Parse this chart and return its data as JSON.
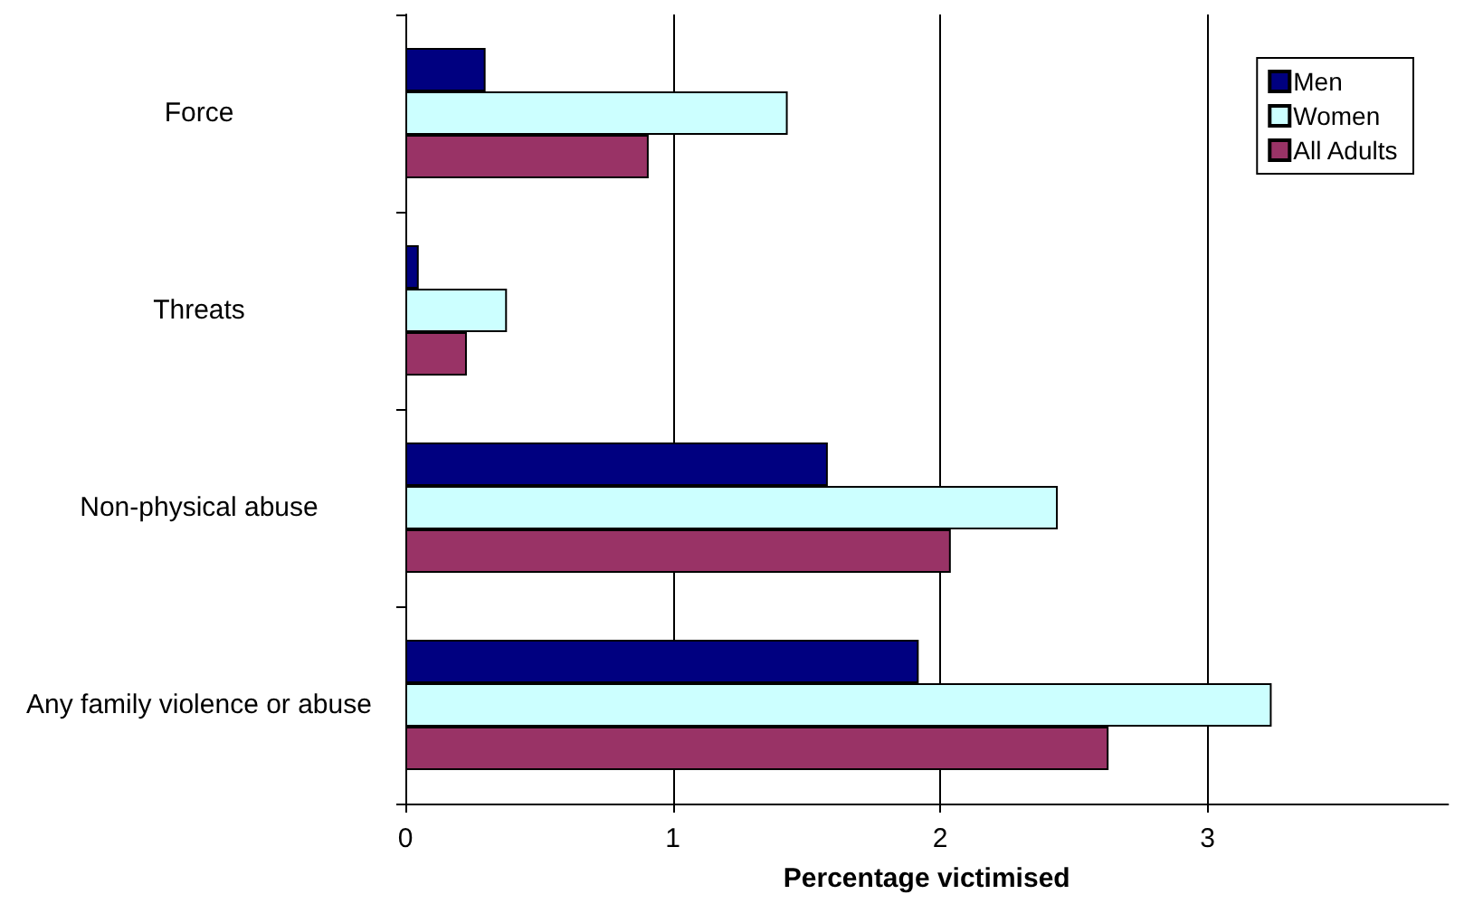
{
  "chart_data": {
    "type": "bar",
    "orientation": "horizontal",
    "xlabel": "Percentage victimised",
    "categories": [
      "Force",
      "Threats",
      "Non-physical abuse",
      "Any family violence or abuse"
    ],
    "series": [
      {
        "name": "Men",
        "color": "#000080",
        "values": [
          0.3,
          0.05,
          1.58,
          1.92
        ]
      },
      {
        "name": "Women",
        "color": "#ccffff",
        "values": [
          1.43,
          0.38,
          2.44,
          3.24
        ]
      },
      {
        "name": "All Adults",
        "color": "#993366",
        "values": [
          0.91,
          0.23,
          2.04,
          2.63
        ]
      }
    ],
    "xlim": [
      0,
      3.9
    ],
    "xticks": [
      0,
      1,
      2,
      3
    ],
    "grid": "x",
    "legend": "top right"
  }
}
